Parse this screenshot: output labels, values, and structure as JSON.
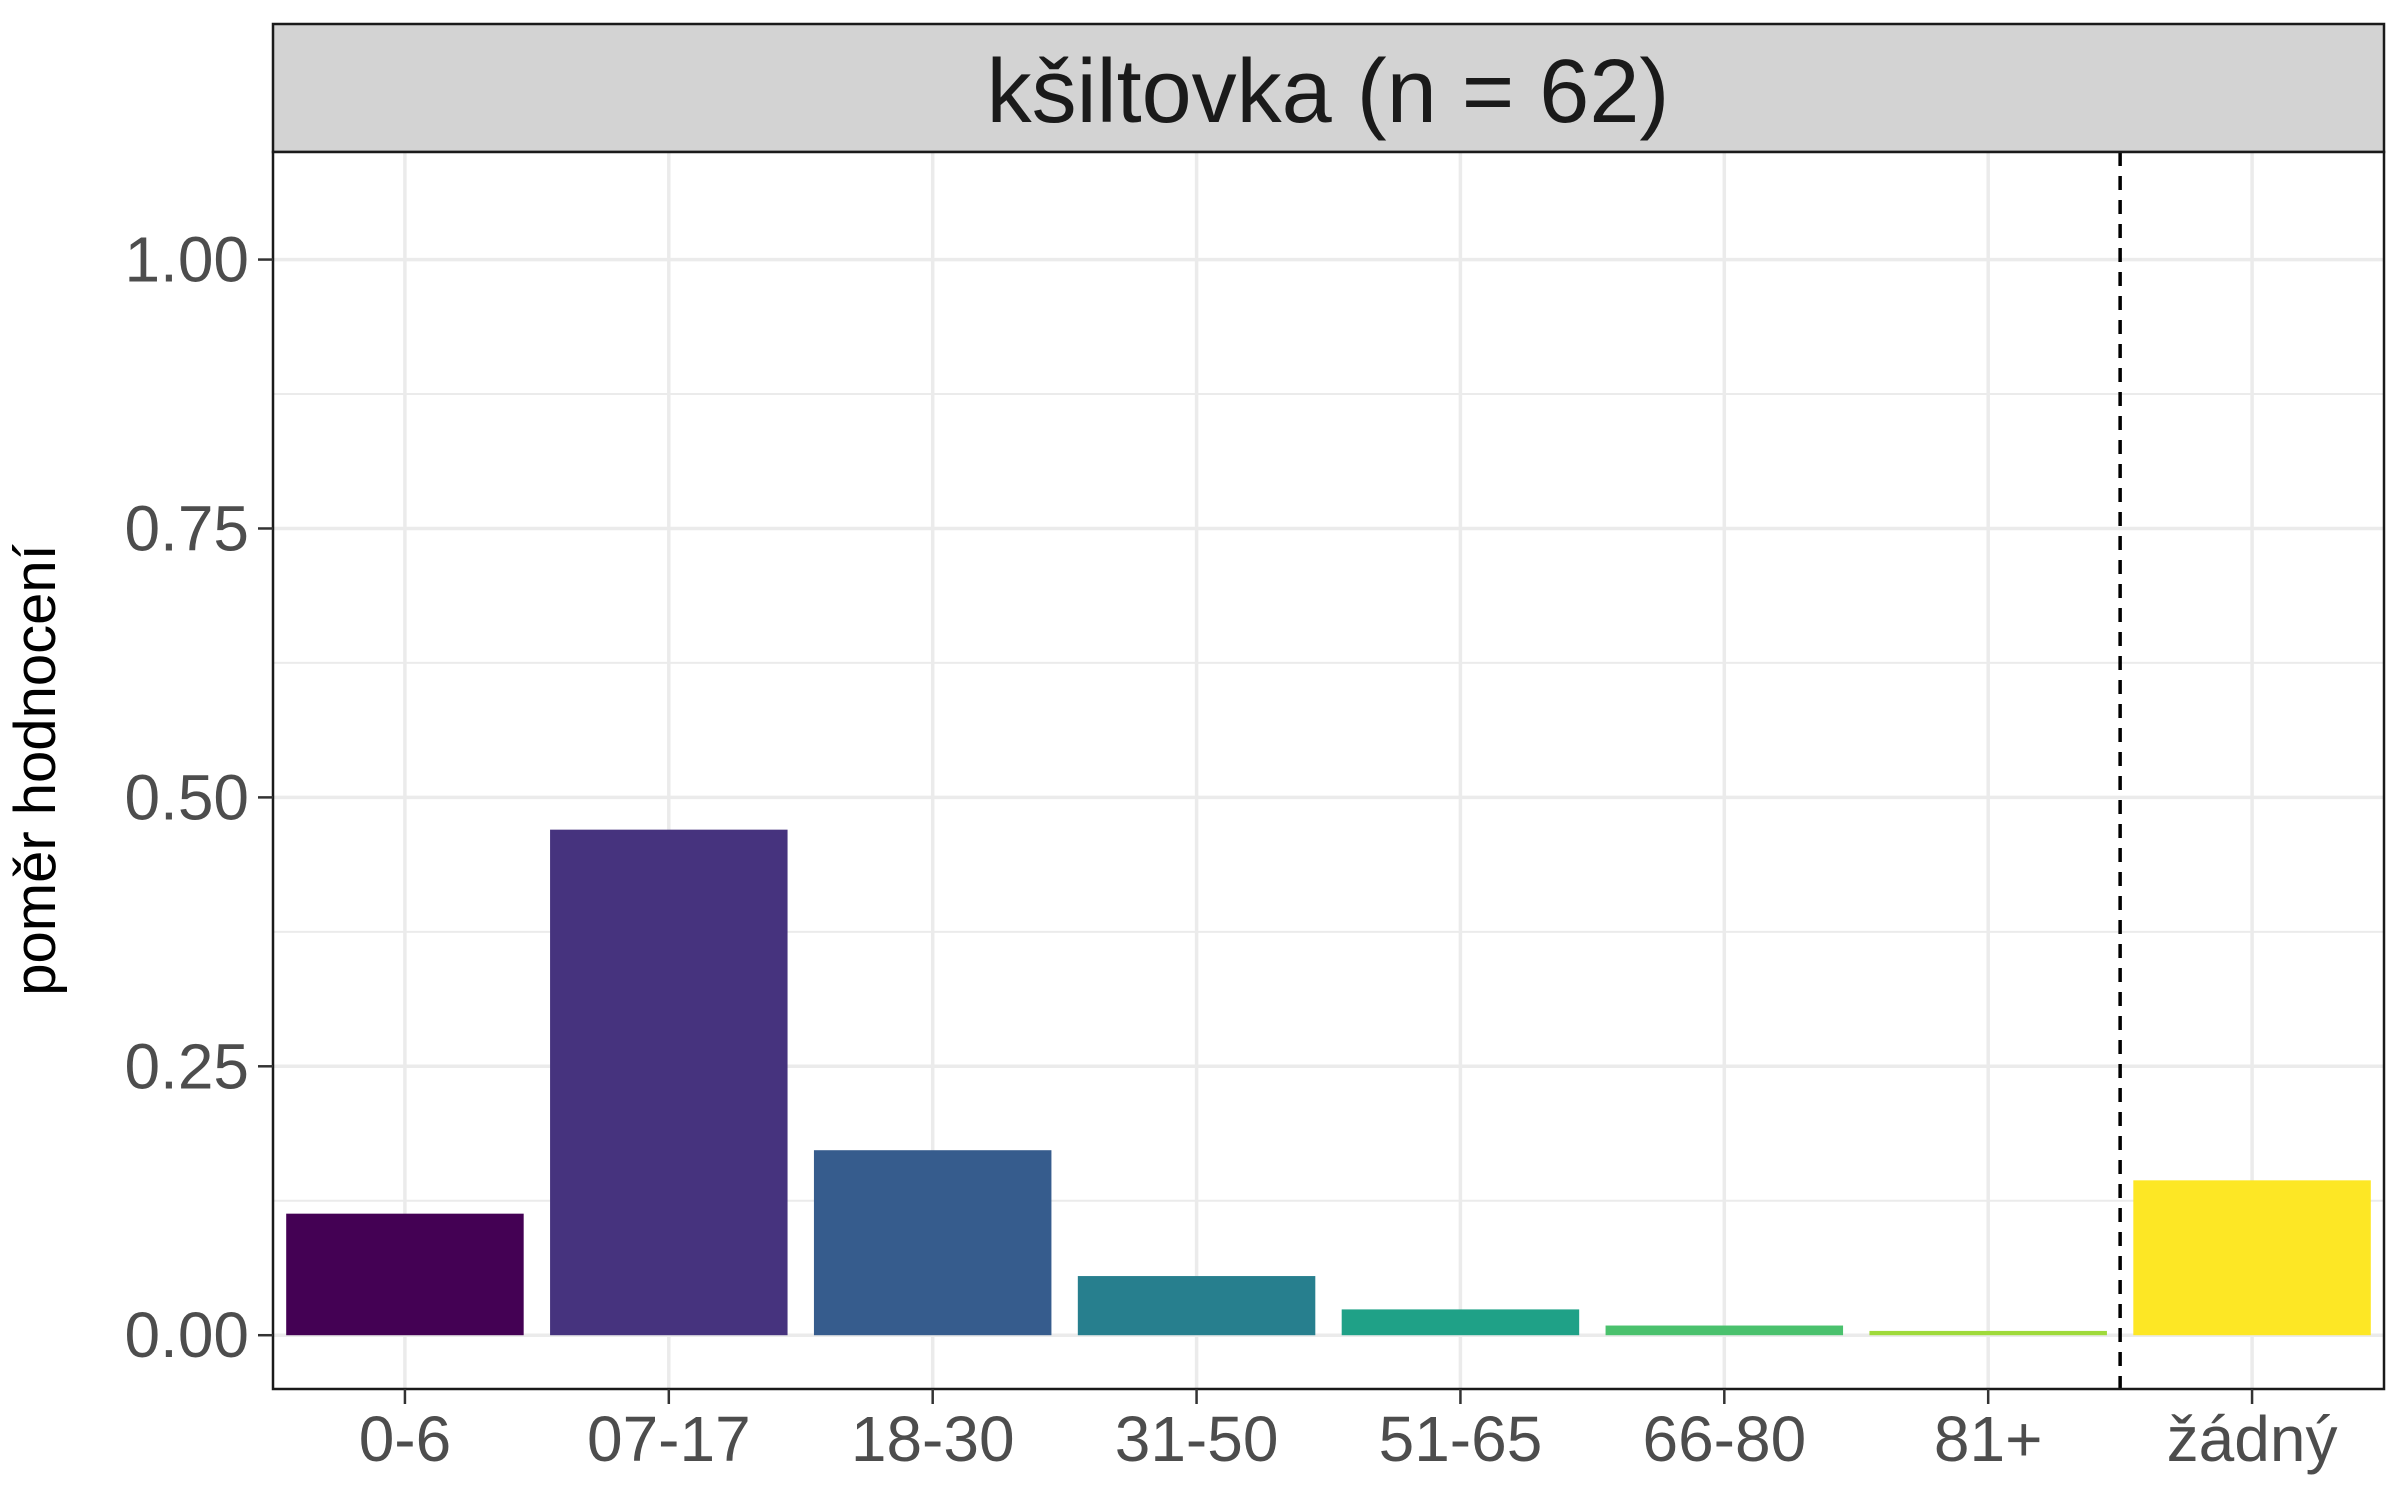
{
  "chart_data": {
    "type": "bar",
    "title": "kšiltovka (n = 62)",
    "xlabel": "",
    "ylabel": "poměr hodnocení",
    "categories": [
      "0-6",
      "07-17",
      "18-30",
      "31-50",
      "51-65",
      "66-80",
      "81+",
      "žádný"
    ],
    "values": [
      0.113,
      0.47,
      0.172,
      0.055,
      0.024,
      0.009,
      0.004,
      0.144
    ],
    "colors": [
      "#440154",
      "#46337E",
      "#365C8D",
      "#277F8E",
      "#1FA187",
      "#4AC16D",
      "#9FDA3A",
      "#FDE725"
    ],
    "ylim": [
      -0.05,
      1.1
    ],
    "yticks": [
      0.0,
      0.25,
      0.5,
      0.75,
      1.0
    ],
    "ytick_labels": [
      "0.00",
      "0.25",
      "0.50",
      "0.75",
      "1.00"
    ],
    "separator_after_category": "81+",
    "grid": true,
    "legend": "none"
  }
}
